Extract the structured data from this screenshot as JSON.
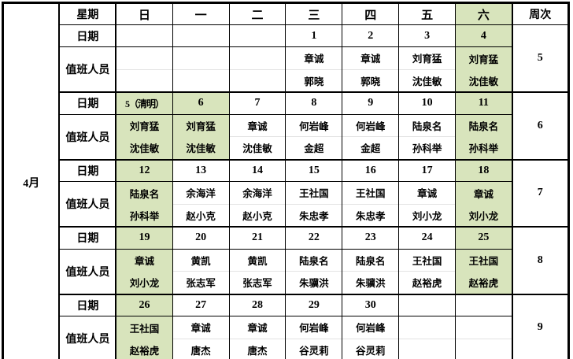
{
  "colors": {
    "highlight": "#d8e4bc",
    "border": "#000000",
    "faint_grid": "#e3e3e3"
  },
  "table": {
    "month_label": "4月",
    "header": {
      "weekday_label": "星期",
      "week_no_label": "周次",
      "days": [
        {
          "label": "日",
          "highlight": false
        },
        {
          "label": "一",
          "highlight": false
        },
        {
          "label": "二",
          "highlight": false
        },
        {
          "label": "三",
          "highlight": false
        },
        {
          "label": "四",
          "highlight": false
        },
        {
          "label": "五",
          "highlight": false
        },
        {
          "label": "六",
          "highlight": true
        }
      ]
    },
    "row_labels": {
      "date": "日期",
      "duty": "值班人员"
    },
    "weeks": [
      {
        "week_no": "5",
        "days": [
          {
            "date": "",
            "names": [
              "",
              ""
            ],
            "date_hl": false,
            "duty_hl": false
          },
          {
            "date": "",
            "names": [
              "",
              ""
            ],
            "date_hl": false,
            "duty_hl": false
          },
          {
            "date": "",
            "names": [
              "",
              ""
            ],
            "date_hl": false,
            "duty_hl": false
          },
          {
            "date": "1",
            "names": [
              "章诚",
              "郭晓"
            ],
            "date_hl": false,
            "duty_hl": false
          },
          {
            "date": "2",
            "names": [
              "章诚",
              "郭晓"
            ],
            "date_hl": false,
            "duty_hl": false
          },
          {
            "date": "3",
            "names": [
              "刘育猛",
              "沈佳敏"
            ],
            "date_hl": false,
            "duty_hl": false
          },
          {
            "date": "4",
            "names": [
              "刘育猛",
              "沈佳敏"
            ],
            "date_hl": true,
            "duty_hl": true
          }
        ]
      },
      {
        "week_no": "6",
        "days": [
          {
            "date": "5（清明）",
            "names": [
              "刘育猛",
              "沈佳敏"
            ],
            "date_hl": true,
            "duty_hl": true
          },
          {
            "date": "6",
            "names": [
              "刘育猛",
              "沈佳敏"
            ],
            "date_hl": true,
            "duty_hl": true
          },
          {
            "date": "7",
            "names": [
              "章诚",
              "沈佳敏"
            ],
            "date_hl": false,
            "duty_hl": false
          },
          {
            "date": "8",
            "names": [
              "何岩峰",
              "金超"
            ],
            "date_hl": false,
            "duty_hl": false
          },
          {
            "date": "9",
            "names": [
              "何岩峰",
              "金超"
            ],
            "date_hl": false,
            "duty_hl": false
          },
          {
            "date": "10",
            "names": [
              "陆泉名",
              "孙科举"
            ],
            "date_hl": false,
            "duty_hl": false
          },
          {
            "date": "11",
            "names": [
              "陆泉名",
              "孙科举"
            ],
            "date_hl": true,
            "duty_hl": true
          }
        ]
      },
      {
        "week_no": "7",
        "days": [
          {
            "date": "12",
            "names": [
              "陆泉名",
              "孙科举"
            ],
            "date_hl": true,
            "duty_hl": true
          },
          {
            "date": "13",
            "names": [
              "余海洋",
              "赵小克"
            ],
            "date_hl": false,
            "duty_hl": false
          },
          {
            "date": "14",
            "names": [
              "余海洋",
              "赵小克"
            ],
            "date_hl": false,
            "duty_hl": false
          },
          {
            "date": "15",
            "names": [
              "王社国",
              "朱忠孝"
            ],
            "date_hl": false,
            "duty_hl": false
          },
          {
            "date": "16",
            "names": [
              "王社国",
              "朱忠孝"
            ],
            "date_hl": false,
            "duty_hl": false
          },
          {
            "date": "17",
            "names": [
              "章诚",
              "刘小龙"
            ],
            "date_hl": false,
            "duty_hl": false
          },
          {
            "date": "18",
            "names": [
              "章诚",
              "刘小龙"
            ],
            "date_hl": true,
            "duty_hl": true
          }
        ]
      },
      {
        "week_no": "8",
        "days": [
          {
            "date": "19",
            "names": [
              "章诚",
              "刘小龙"
            ],
            "date_hl": true,
            "duty_hl": true
          },
          {
            "date": "20",
            "names": [
              "黄凯",
              "张志军"
            ],
            "date_hl": false,
            "duty_hl": false
          },
          {
            "date": "21",
            "names": [
              "黄凯",
              "张志军"
            ],
            "date_hl": false,
            "duty_hl": false
          },
          {
            "date": "22",
            "names": [
              "陆泉名",
              "朱骥洪"
            ],
            "date_hl": false,
            "duty_hl": false
          },
          {
            "date": "23",
            "names": [
              "陆泉名",
              "朱骥洪"
            ],
            "date_hl": false,
            "duty_hl": false
          },
          {
            "date": "24",
            "names": [
              "王社国",
              "赵裕虎"
            ],
            "date_hl": false,
            "duty_hl": false
          },
          {
            "date": "25",
            "names": [
              "王社国",
              "赵裕虎"
            ],
            "date_hl": true,
            "duty_hl": true
          }
        ]
      },
      {
        "week_no": "9",
        "days": [
          {
            "date": "26",
            "names": [
              "王社国",
              "赵裕虎"
            ],
            "date_hl": true,
            "duty_hl": true
          },
          {
            "date": "27",
            "names": [
              "章诚",
              "唐杰"
            ],
            "date_hl": false,
            "duty_hl": false
          },
          {
            "date": "28",
            "names": [
              "章诚",
              "唐杰"
            ],
            "date_hl": false,
            "duty_hl": false
          },
          {
            "date": "29",
            "names": [
              "何岩峰",
              "谷灵莉"
            ],
            "date_hl": false,
            "duty_hl": false
          },
          {
            "date": "30",
            "names": [
              "何岩峰",
              "谷灵莉"
            ],
            "date_hl": false,
            "duty_hl": false
          },
          {
            "date": "",
            "names": [
              "",
              ""
            ],
            "date_hl": false,
            "duty_hl": false
          },
          {
            "date": "",
            "names": [
              "",
              ""
            ],
            "date_hl": false,
            "duty_hl": false
          }
        ]
      }
    ]
  }
}
